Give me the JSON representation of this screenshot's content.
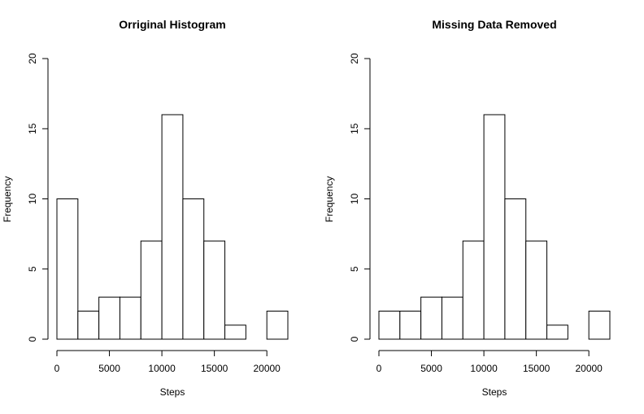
{
  "chart_data": [
    {
      "type": "bar",
      "title": "Orriginal Histogram",
      "xlabel": "Steps",
      "ylabel": "Frequency",
      "bin_edges": [
        0,
        2000,
        4000,
        6000,
        8000,
        10000,
        12000,
        14000,
        16000,
        18000,
        20000,
        22000
      ],
      "values": [
        10,
        2,
        3,
        3,
        7,
        16,
        10,
        7,
        1,
        0,
        2
      ],
      "xlim": [
        0,
        22000
      ],
      "ylim": [
        0,
        20
      ],
      "x_ticks": [
        0,
        5000,
        10000,
        15000,
        20000
      ],
      "y_ticks": [
        0,
        5,
        10,
        15,
        20
      ],
      "grid": false,
      "bar_fill": "#ffffff",
      "bar_stroke": "#000000"
    },
    {
      "type": "bar",
      "title": "Missing Data Removed",
      "xlabel": "Steps",
      "ylabel": "Frequency",
      "bin_edges": [
        0,
        2000,
        4000,
        6000,
        8000,
        10000,
        12000,
        14000,
        16000,
        18000,
        20000,
        22000
      ],
      "values": [
        2,
        2,
        3,
        3,
        7,
        16,
        10,
        7,
        1,
        0,
        2
      ],
      "xlim": [
        0,
        22000
      ],
      "ylim": [
        0,
        20
      ],
      "x_ticks": [
        0,
        5000,
        10000,
        15000,
        20000
      ],
      "y_ticks": [
        0,
        5,
        10,
        15,
        20
      ],
      "grid": false,
      "bar_fill": "#ffffff",
      "bar_stroke": "#000000"
    }
  ]
}
